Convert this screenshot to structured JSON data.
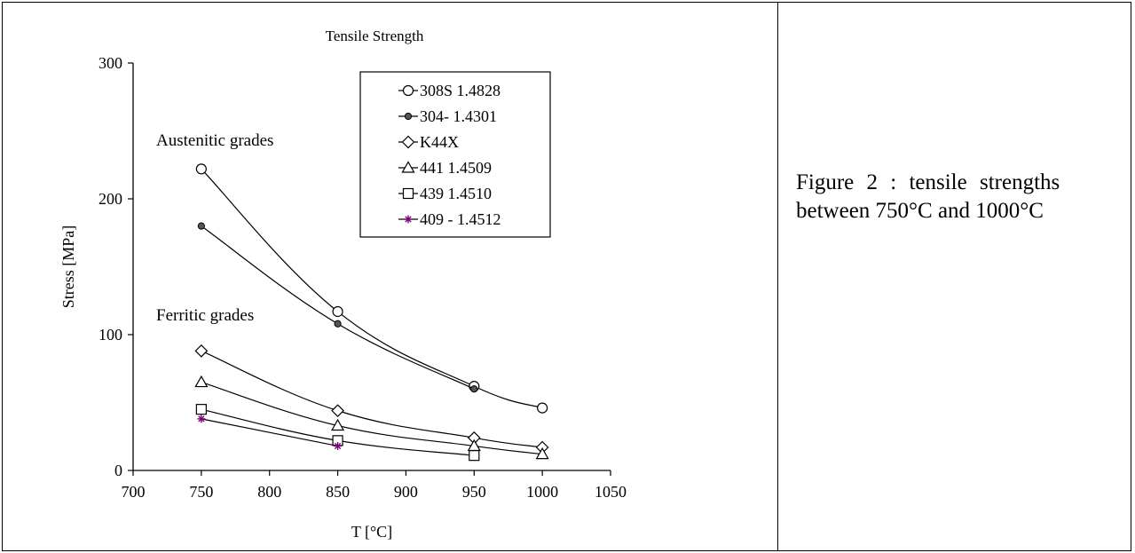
{
  "caption": {
    "line1": "Figure 2 : tensile strengths",
    "line2": "between 750°C and 1000°C"
  },
  "chart_data": {
    "type": "line",
    "title": "Tensile Strength",
    "xlabel": "T [°C]",
    "ylabel": "Stress [MPa]",
    "xlim": [
      700,
      1050
    ],
    "ylim": [
      0,
      300
    ],
    "xticks": [
      700,
      750,
      800,
      850,
      900,
      950,
      1000,
      1050
    ],
    "yticks": [
      0,
      100,
      200,
      300
    ],
    "grid": false,
    "legend_position": "top-right",
    "annotations": [
      {
        "text": "Austenitic grades"
      },
      {
        "text": "Ferritic grades"
      }
    ],
    "series": [
      {
        "name": "308S 1.4828",
        "marker": "circle-open",
        "color": "#000000",
        "x": [
          750,
          850,
          950,
          1000
        ],
        "y": [
          222,
          117,
          62,
          46
        ]
      },
      {
        "name": "304- 1.4301",
        "marker": "circle-filled",
        "color": "#000000",
        "x": [
          750,
          850,
          950
        ],
        "y": [
          180,
          108,
          60
        ]
      },
      {
        "name": "K44X",
        "marker": "diamond-open",
        "color": "#000000",
        "x": [
          750,
          850,
          950,
          1000
        ],
        "y": [
          88,
          44,
          24,
          17
        ]
      },
      {
        "name": "441  1.4509",
        "marker": "triangle-open",
        "color": "#000000",
        "x": [
          750,
          850,
          950,
          1000
        ],
        "y": [
          65,
          33,
          18,
          12
        ]
      },
      {
        "name": "439  1.4510",
        "marker": "square-open",
        "color": "#000000",
        "x": [
          750,
          850,
          950
        ],
        "y": [
          45,
          22,
          11
        ]
      },
      {
        "name": "409 - 1.4512",
        "marker": "asterisk",
        "color": "#800080",
        "line_color": "#000000",
        "x": [
          750,
          850
        ],
        "y": [
          38,
          18
        ]
      }
    ]
  }
}
